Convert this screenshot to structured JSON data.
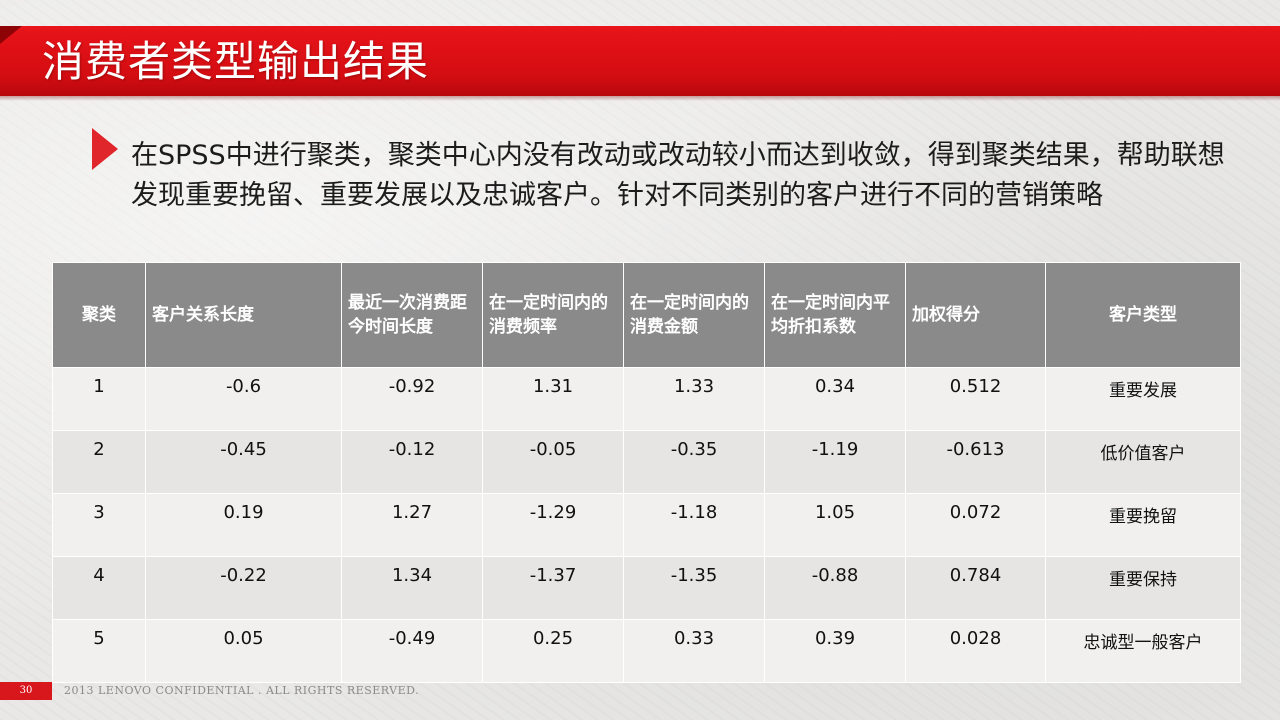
{
  "slide": {
    "title": "消费者类型输出结果",
    "bullet_text": "在SPSS中进行聚类，聚类中心内没有改动或改动较小而达到收敛，得到聚类结果，帮助联想发现重要挽留、重要发展以及忠诚客户。针对不同类别的客户进行不同的营销策略"
  },
  "table": {
    "headers": [
      "聚类",
      "客户关系长度",
      "最近一次消费距今时间长度",
      "在一定时间内的消费频率",
      "在一定时间内的消费金额",
      "在一定时间内平均折扣系数",
      "加权得分",
      "客户类型"
    ],
    "rows": [
      [
        "1",
        "-0.6",
        "-0.92",
        "1.31",
        "1.33",
        "0.34",
        "0.512",
        "重要发展"
      ],
      [
        "2",
        "-0.45",
        "-0.12",
        "-0.05",
        "-0.35",
        "-1.19",
        "-0.613",
        "低价值客户"
      ],
      [
        "3",
        "0.19",
        "1.27",
        "-1.29",
        "-1.18",
        "1.05",
        "0.072",
        "重要挽留"
      ],
      [
        "4",
        "-0.22",
        "1.34",
        "-1.37",
        "-1.35",
        "-0.88",
        "0.784",
        "重要保持"
      ],
      [
        "5",
        "0.05",
        "-0.49",
        "0.25",
        "0.33",
        "0.39",
        "0.028",
        "忠诚型一般客户"
      ]
    ]
  },
  "footer": {
    "page_number": "30",
    "copyright": "2013 LENOVO  CONFIDENTIAL .  ALL  RIGHTS   RESERVED."
  },
  "colors": {
    "accent_red": "#d8171d",
    "header_gray": "#8a8a8a"
  },
  "icons": {
    "bullet": "triangle-bullet-icon"
  }
}
